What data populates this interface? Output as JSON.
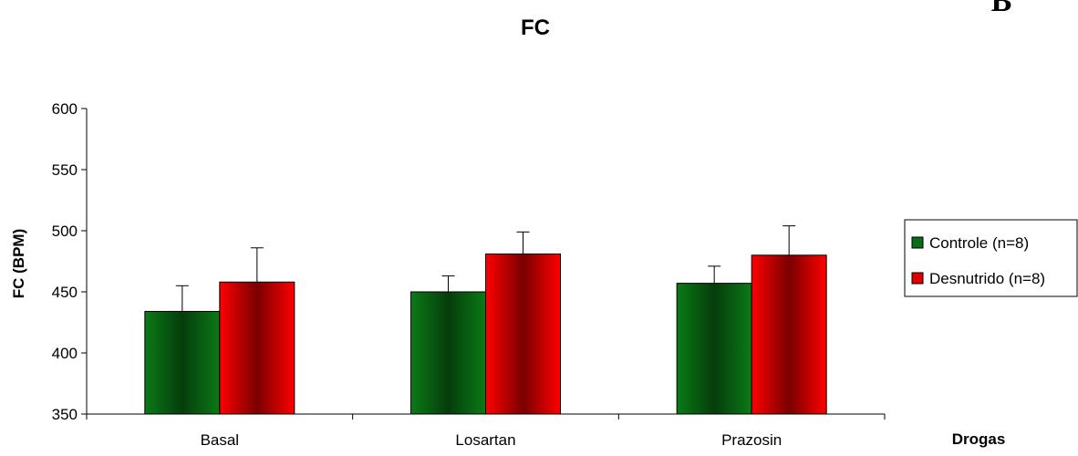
{
  "corner_label": "B",
  "chart_data": {
    "type": "bar",
    "title": "FC",
    "xlabel": "Drogas",
    "ylabel": "FC (BPM)",
    "ylim": [
      350,
      600
    ],
    "yticks": [
      350,
      400,
      450,
      500,
      550,
      600
    ],
    "grid": false,
    "legend_position": "right",
    "categories": [
      "Basal",
      "Losartan",
      "Prazosin"
    ],
    "series": [
      {
        "name": "Controle (n=8)",
        "color": "#0a6e14",
        "values": [
          434,
          450,
          457
        ],
        "errors": [
          21,
          13,
          14
        ]
      },
      {
        "name": "Desnutrido (n=8)",
        "color": "#e00000",
        "values": [
          458,
          481,
          480
        ],
        "errors": [
          28,
          18,
          24
        ]
      }
    ]
  }
}
